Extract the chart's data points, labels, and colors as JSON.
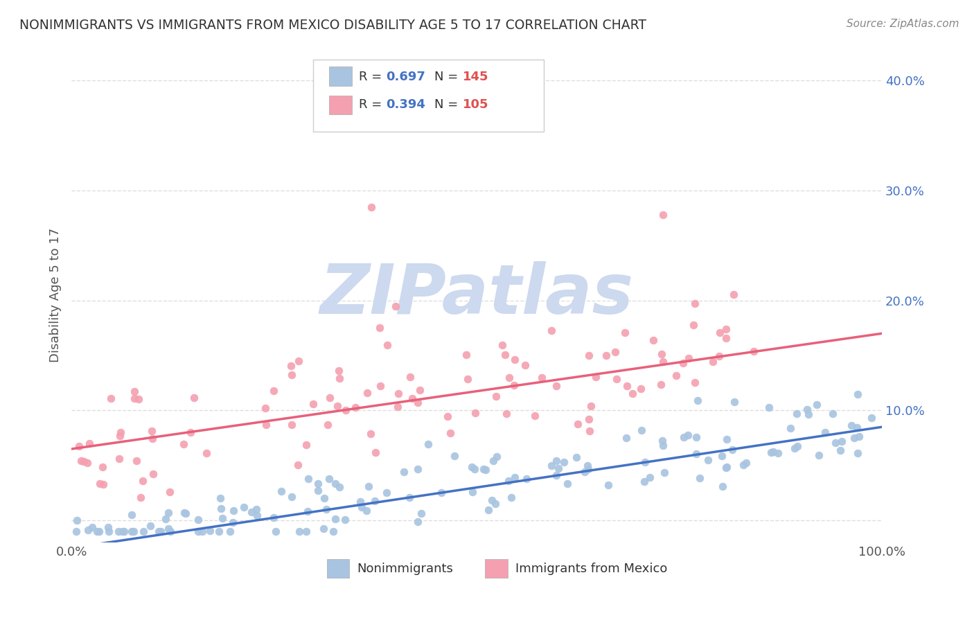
{
  "title": "NONIMMIGRANTS VS IMMIGRANTS FROM MEXICO DISABILITY AGE 5 TO 17 CORRELATION CHART",
  "source": "Source: ZipAtlas.com",
  "ylabel": "Disability Age 5 to 17",
  "ytick_labels": [
    "",
    "10.0%",
    "20.0%",
    "30.0%",
    "40.0%"
  ],
  "ytick_values": [
    0,
    0.1,
    0.2,
    0.3,
    0.4
  ],
  "xlim": [
    0,
    1.0
  ],
  "ylim": [
    -0.02,
    0.43
  ],
  "blue_R": 0.697,
  "blue_N": 145,
  "pink_R": 0.394,
  "pink_N": 105,
  "blue_color": "#a8c4e0",
  "pink_color": "#f4a0b0",
  "blue_line_color": "#4472c4",
  "pink_line_color": "#e8607a",
  "legend_R_color": "#4472c4",
  "legend_N_color": "#e05050",
  "title_color": "#333333",
  "source_color": "#888888",
  "grid_color": "#dddddd",
  "axis_label_color": "#4472c4",
  "blue_intercept": -0.025,
  "blue_slope": 0.11,
  "pink_intercept": 0.065,
  "pink_slope": 0.105,
  "background_color": "#ffffff",
  "watermark_color": "#ccd9ee",
  "watermark_text": "ZIPatlas"
}
